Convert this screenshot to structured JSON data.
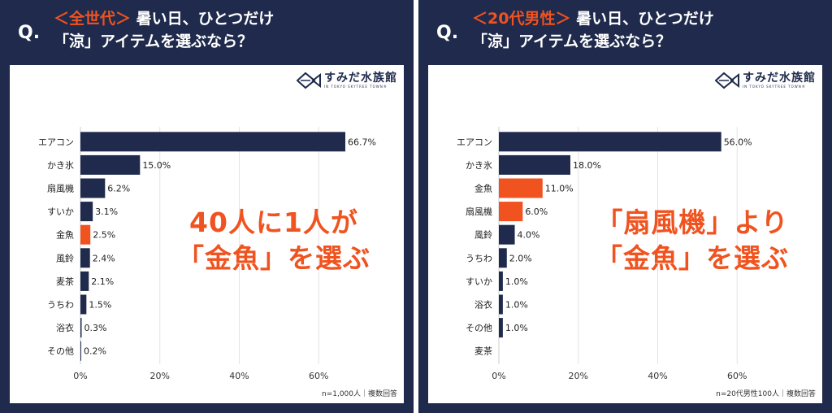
{
  "panels": [
    {
      "q_mark": "Q.",
      "title": {
        "accent": "＜全世代＞",
        "line1_rest": "暑い日、ひとつだけ",
        "line2": "「涼」アイテムを選ぶなら？"
      },
      "logo": {
        "text": "すみだ水族館",
        "sub": "IN TOKYO SKYTREE TOWN®"
      },
      "note": "n=1,000人｜複数回答",
      "overlay": {
        "line1": "40人に1人が",
        "line2": "「金魚」を選ぶ"
      }
    },
    {
      "q_mark": "Q.",
      "title": {
        "accent": "＜20代男性＞",
        "line1_rest": "暑い日、ひとつだけ",
        "line2": "「涼」アイテムを選ぶなら？"
      },
      "logo": {
        "text": "すみだ水族館",
        "sub": "IN TOKYO SKYTREE TOWN®"
      },
      "note": "n=20代男性100人｜複数回答",
      "overlay": {
        "line1": "「扇風機」より",
        "line2": "「金魚」を選ぶ"
      }
    }
  ],
  "chart_data": [
    {
      "type": "bar",
      "orientation": "horizontal",
      "categories": [
        "エアコン",
        "かき氷",
        "扇風機",
        "すいか",
        "金魚",
        "風鈴",
        "麦茶",
        "うちわ",
        "浴衣",
        "その他"
      ],
      "values": [
        66.7,
        15.0,
        6.2,
        3.1,
        2.5,
        2.4,
        2.1,
        1.5,
        0.3,
        0.2
      ],
      "value_labels": [
        "66.7%",
        "15.0%",
        "6.2%",
        "3.1%",
        "2.5%",
        "2.4%",
        "2.1%",
        "1.5%",
        "0.3%",
        "0.2%"
      ],
      "highlight_category": "金魚",
      "xlim": [
        0,
        80
      ],
      "xticks": [
        0,
        20,
        40,
        60
      ],
      "xtick_labels": [
        "0%",
        "20%",
        "40%",
        "60%"
      ],
      "grid": true,
      "colors": {
        "bar": "#1f2a4c",
        "highlight": "#f0531f",
        "grid": "#e3e3e3"
      }
    },
    {
      "type": "bar",
      "orientation": "horizontal",
      "categories": [
        "エアコン",
        "かき氷",
        "金魚",
        "扇風機",
        "風鈴",
        "うちわ",
        "すいか",
        "浴衣",
        "その他",
        "麦茶"
      ],
      "values": [
        56.0,
        18.0,
        11.0,
        6.0,
        4.0,
        2.0,
        1.0,
        1.0,
        1.0,
        0.0
      ],
      "value_labels": [
        "56.0%",
        "18.0%",
        "11.0%",
        "6.0%",
        "4.0%",
        "2.0%",
        "1.0%",
        "1.0%",
        "1.0%",
        ""
      ],
      "highlight_category": [
        "金魚",
        "扇風機"
      ],
      "xlim": [
        0,
        80
      ],
      "xticks": [
        0,
        20,
        40,
        60
      ],
      "xtick_labels": [
        "0%",
        "20%",
        "40%",
        "60%"
      ],
      "grid": true,
      "colors": {
        "bar": "#1f2a4c",
        "highlight": "#f0531f",
        "grid": "#e3e3e3"
      }
    }
  ]
}
